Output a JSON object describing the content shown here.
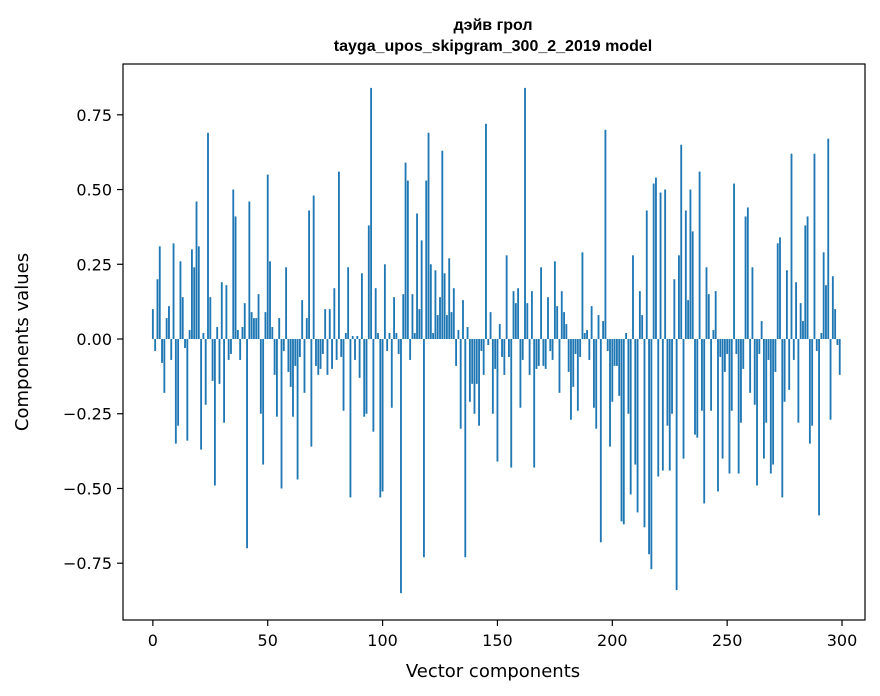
{
  "chart_data": {
    "type": "bar",
    "title": "дэйв грол",
    "subtitle": "tayga_upos_skipgram_300_2_2019 model",
    "xlabel": "Vector components",
    "ylabel": "Components values",
    "xlim": [
      -13,
      310
    ],
    "ylim": [
      -0.94,
      0.92
    ],
    "xticks": [
      0,
      50,
      100,
      150,
      200,
      250,
      300
    ],
    "xtick_labels": [
      "0",
      "50",
      "100",
      "150",
      "200",
      "250",
      "300"
    ],
    "yticks": [
      -0.75,
      -0.5,
      -0.25,
      0.0,
      0.25,
      0.5,
      0.75
    ],
    "ytick_labels": [
      "−0.75",
      "−0.50",
      "−0.25",
      "0.00",
      "0.25",
      "0.50",
      "0.75"
    ],
    "grid": false,
    "bar_color": "#1f77b4",
    "x": "0..299 (component index)",
    "values": [
      0.1,
      -0.04,
      0.2,
      0.31,
      -0.08,
      -0.18,
      0.07,
      0.11,
      -0.07,
      0.32,
      -0.35,
      -0.29,
      0.26,
      0.14,
      -0.03,
      -0.34,
      0.03,
      0.3,
      0.24,
      0.46,
      0.31,
      -0.37,
      0.02,
      -0.22,
      0.69,
      0.14,
      -0.14,
      -0.49,
      0.04,
      -0.15,
      0.19,
      -0.28,
      0.18,
      -0.07,
      -0.05,
      0.5,
      0.41,
      0.03,
      -0.07,
      0.04,
      0.12,
      -0.7,
      0.46,
      0.09,
      0.07,
      0.07,
      0.15,
      -0.25,
      -0.42,
      0.09,
      0.55,
      0.26,
      0.04,
      -0.12,
      -0.26,
      0.07,
      -0.5,
      -0.04,
      0.24,
      -0.11,
      -0.16,
      -0.26,
      -0.09,
      -0.47,
      -0.06,
      0.13,
      -0.18,
      0.07,
      0.43,
      -0.36,
      0.48,
      -0.09,
      -0.12,
      -0.1,
      -0.05,
      0.1,
      -0.12,
      0.1,
      -0.1,
      0.17,
      -0.07,
      0.56,
      -0.06,
      -0.24,
      0.02,
      0.24,
      -0.53,
      0.01,
      -0.07,
      0.01,
      -0.13,
      0.22,
      -0.26,
      -0.25,
      0.38,
      0.84,
      -0.31,
      0.17,
      0.02,
      -0.53,
      -0.51,
      0.25,
      -0.04,
      0.02,
      -0.23,
      0.14,
      0.02,
      -0.05,
      -0.85,
      0.15,
      0.59,
      0.53,
      -0.07,
      0.15,
      0.02,
      0.42,
      0.1,
      0.33,
      -0.73,
      0.53,
      0.69,
      0.25,
      0.02,
      0.23,
      0.08,
      0.14,
      0.63,
      0.22,
      0.08,
      0.27,
      0.09,
      0.17,
      -0.09,
      0.03,
      -0.3,
      0.13,
      -0.73,
      0.04,
      -0.21,
      -0.15,
      -0.25,
      -0.15,
      -0.29,
      -0.04,
      -0.12,
      0.72,
      -0.02,
      0.09,
      -0.25,
      -0.1,
      -0.41,
      0.05,
      -0.06,
      -0.12,
      0.28,
      -0.06,
      -0.43,
      0.16,
      0.12,
      0.17,
      -0.23,
      -0.07,
      0.84,
      0.12,
      -0.12,
      0.16,
      -0.43,
      -0.1,
      -0.09,
      0.24,
      -0.09,
      -0.1,
      0.14,
      -0.04,
      -0.07,
      0.26,
      0.11,
      -0.18,
      0.16,
      0.09,
      0.05,
      -0.11,
      -0.27,
      -0.16,
      -0.05,
      -0.24,
      -0.06,
      0.29,
      0.02,
      0.03,
      -0.07,
      0.11,
      -0.23,
      -0.3,
      0.08,
      -0.68,
      0.06,
      0.7,
      -0.04,
      -0.36,
      -0.21,
      -0.09,
      -0.09,
      -0.19,
      -0.61,
      -0.62,
      0.02,
      -0.25,
      -0.52,
      0.28,
      -0.42,
      -0.58,
      0.16,
      0.08,
      -0.63,
      0.43,
      -0.72,
      -0.77,
      0.52,
      0.54,
      -0.46,
      0.49,
      -0.44,
      0.5,
      -0.29,
      -0.44,
      -0.25,
      0.2,
      -0.84,
      0.28,
      0.65,
      -0.4,
      0.43,
      0.13,
      0.5,
      0.36,
      -0.32,
      -0.33,
      0.56,
      -0.24,
      -0.55,
      0.24,
      0.15,
      -0.24,
      0.03,
      0.16,
      -0.51,
      -0.06,
      -0.4,
      -0.11,
      -0.05,
      -0.45,
      -0.24,
      0.52,
      -0.05,
      -0.45,
      -0.28,
      -0.1,
      0.41,
      0.44,
      -0.18,
      0.24,
      -0.22,
      -0.49,
      -0.05,
      0.06,
      -0.4,
      -0.28,
      -0.07,
      -0.45,
      -0.42,
      -0.11,
      0.32,
      0.34,
      -0.53,
      -0.21,
      0.23,
      -0.17,
      0.62,
      -0.07,
      0.19,
      -0.28,
      0.12,
      0.06,
      0.38,
      0.41,
      -0.35,
      -0.29,
      0.62,
      -0.04,
      -0.59,
      0.02,
      0.29,
      0.18,
      0.67,
      -0.27,
      0.21,
      0.1,
      -0.02,
      -0.12
    ]
  }
}
